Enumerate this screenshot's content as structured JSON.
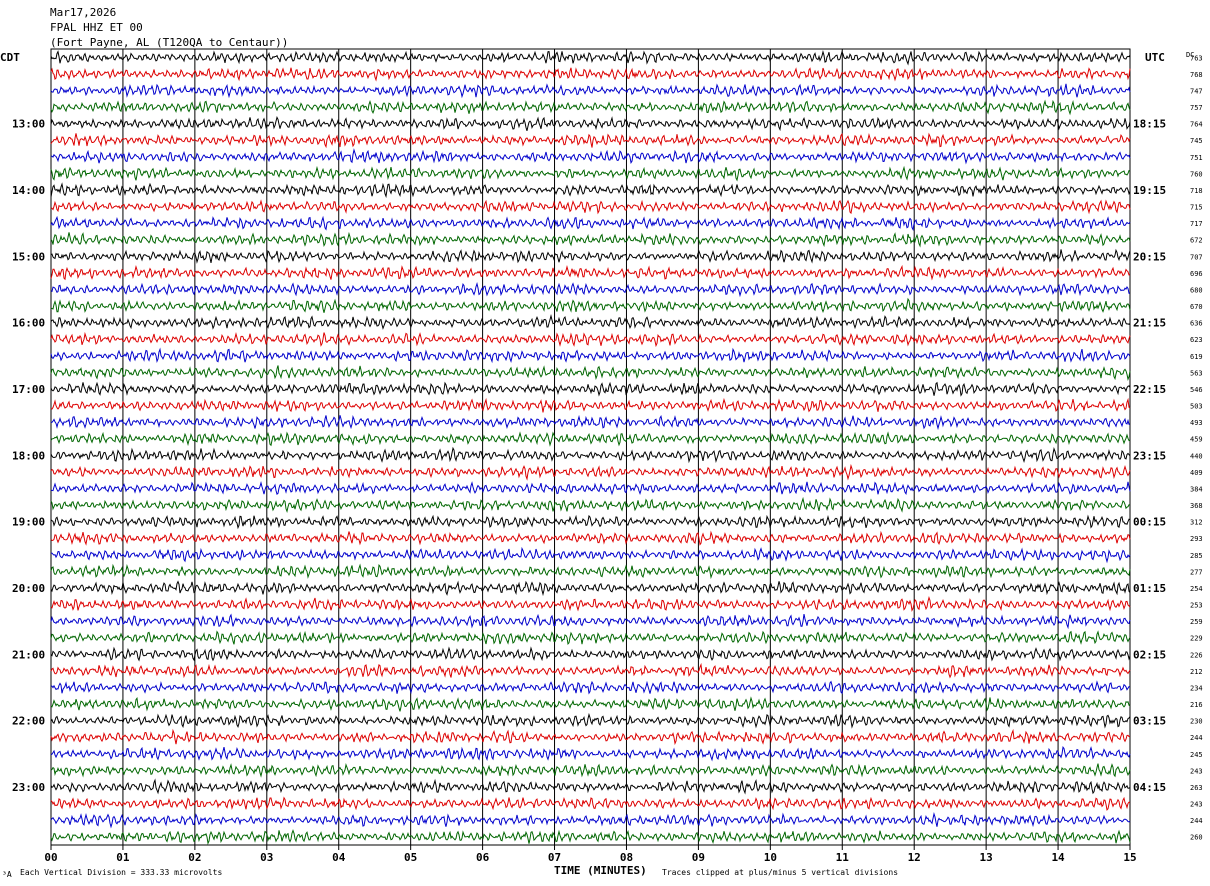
{
  "header": {
    "date": "Mar17,2026",
    "station": "FPAL HHZ ET 00",
    "location": "(Fort Payne, AL (T120QA to Centaur))"
  },
  "left_zone": "CDT",
  "right_zone": "UTC",
  "dc_label": "DC",
  "footer": {
    "division": "Each Vertical Division =  333.33 microvolts",
    "clip": "Traces clipped at plus/minus 5 vertical divisions",
    "corner_mark": "³A"
  },
  "colors": {
    "trace_cycle": [
      "#000000",
      "#dd0000",
      "#0000cc",
      "#006600"
    ],
    "grid": "#000000",
    "background": "#ffffff"
  },
  "chart_data": {
    "type": "line",
    "subtype": "helicorder",
    "title": "FPAL HHZ ET 00",
    "xlabel": "TIME (MINUTES)",
    "xlim": [
      0,
      15
    ],
    "x_ticks": [
      "00",
      "01",
      "02",
      "03",
      "04",
      "05",
      "06",
      "07",
      "08",
      "09",
      "10",
      "11",
      "12",
      "13",
      "14",
      "15"
    ],
    "rows": 48,
    "minutes_per_row": 15,
    "left_hour_labels": [
      {
        "row": 4,
        "label": "13:00"
      },
      {
        "row": 8,
        "label": "14:00"
      },
      {
        "row": 12,
        "label": "15:00"
      },
      {
        "row": 16,
        "label": "16:00"
      },
      {
        "row": 20,
        "label": "17:00"
      },
      {
        "row": 24,
        "label": "18:00"
      },
      {
        "row": 28,
        "label": "19:00"
      },
      {
        "row": 32,
        "label": "20:00"
      },
      {
        "row": 36,
        "label": "21:00"
      },
      {
        "row": 40,
        "label": "22:00"
      },
      {
        "row": 44,
        "label": "23:00"
      }
    ],
    "right_hour_labels": [
      {
        "row": 4,
        "label": "18:15"
      },
      {
        "row": 8,
        "label": "19:15"
      },
      {
        "row": 12,
        "label": "20:15"
      },
      {
        "row": 16,
        "label": "21:15"
      },
      {
        "row": 20,
        "label": "22:15"
      },
      {
        "row": 24,
        "label": "23:15"
      },
      {
        "row": 28,
        "label": "00:15"
      },
      {
        "row": 32,
        "label": "01:15"
      },
      {
        "row": 36,
        "label": "02:15"
      },
      {
        "row": 40,
        "label": "03:15"
      },
      {
        "row": 44,
        "label": "04:15"
      }
    ],
    "dc_offsets": [
      "763",
      "768",
      "747",
      "757",
      "764",
      "745",
      "751",
      "760",
      "718",
      "715",
      "717",
      "672",
      "707",
      "696",
      "680",
      "670",
      "636",
      "623",
      "619",
      "563",
      "546",
      "503",
      "493",
      "459",
      "440",
      "409",
      "384",
      "368",
      "312",
      "293",
      "285",
      "277",
      "254",
      "253",
      "259",
      "229",
      "226",
      "212",
      "234",
      "216",
      "230",
      "244",
      "245",
      "243",
      "263",
      "243",
      "244",
      "260"
    ]
  }
}
